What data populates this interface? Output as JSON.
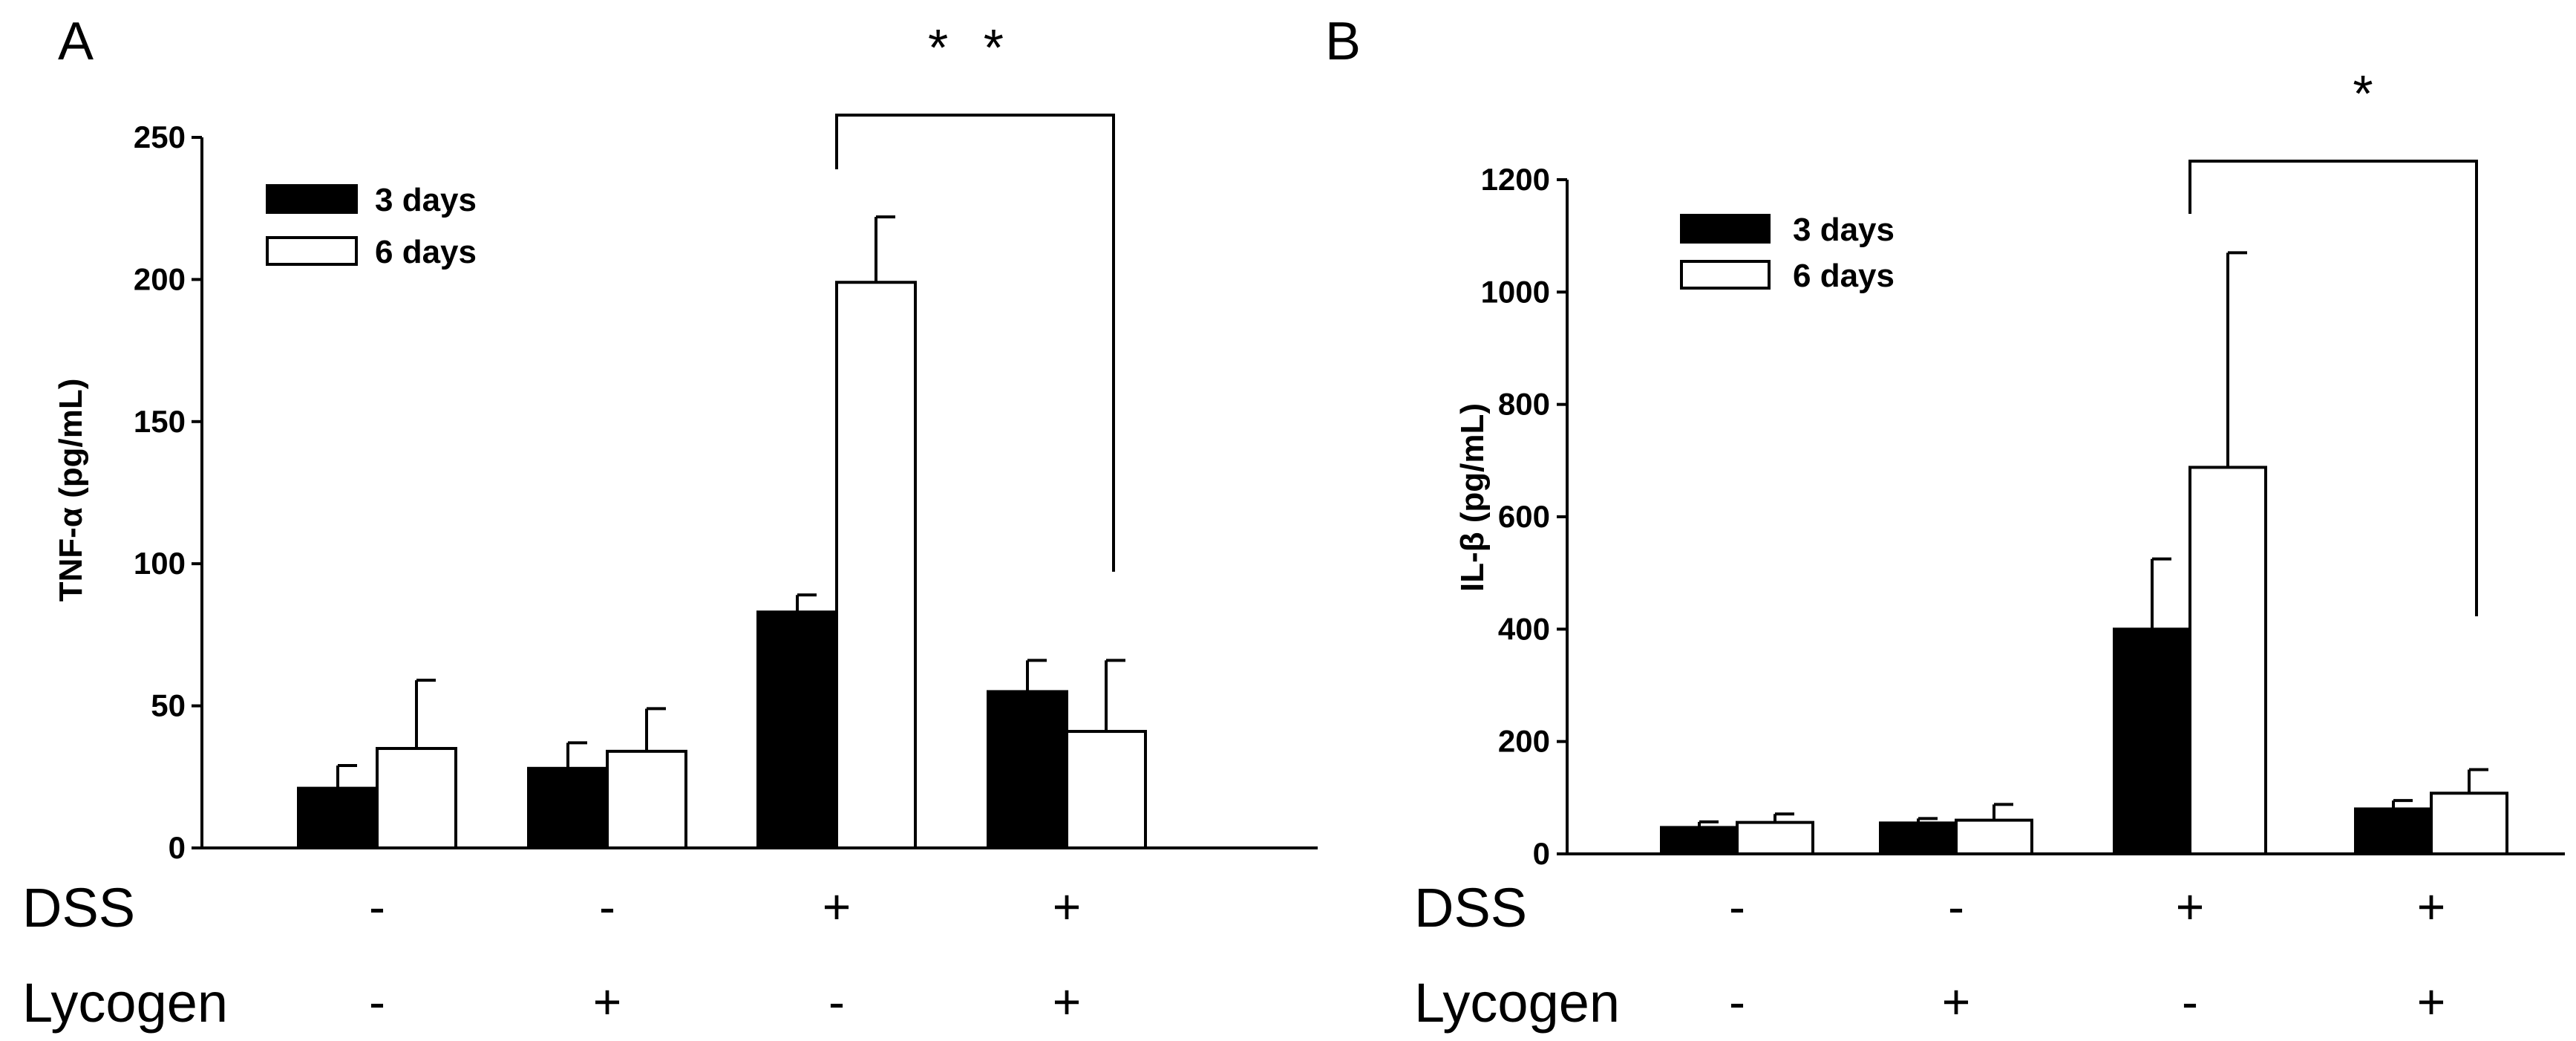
{
  "chart_data": [
    {
      "panel_label": "A",
      "type": "bar",
      "title": "",
      "ylabel": "TNF-α (pg/mL)",
      "xlabel": "",
      "ylim": [
        0,
        250
      ],
      "yticks": [
        0,
        50,
        100,
        150,
        200,
        250
      ],
      "ytick_labels": [
        "0",
        "50",
        "100",
        "150",
        "200",
        "250"
      ],
      "grid": false,
      "legend_position": "top-left",
      "series": [
        {
          "name": "3 days",
          "fill": "#000000",
          "values": [
            21,
            28,
            83,
            55
          ],
          "errors": [
            8,
            9,
            6,
            11
          ]
        },
        {
          "name": "6 days",
          "fill": "#ffffff",
          "values": [
            35,
            34,
            199,
            41
          ],
          "errors": [
            24,
            15,
            23,
            25
          ]
        }
      ],
      "conditions": [
        {
          "label": "DSS",
          "values": [
            "-",
            "-",
            "+",
            "+"
          ]
        },
        {
          "label": "Lycogen",
          "values": [
            "-",
            "+",
            "-",
            "+"
          ]
        }
      ],
      "significance": {
        "label": "* *",
        "from_group": 2,
        "to_group": 3
      }
    },
    {
      "panel_label": "B",
      "type": "bar",
      "title": "",
      "ylabel": "IL-β (pg/mL)",
      "xlabel": "",
      "ylim": [
        0,
        1200
      ],
      "yticks": [
        0,
        200,
        400,
        600,
        800,
        1000,
        1200
      ],
      "ytick_labels": [
        "0",
        "200",
        "400",
        "600",
        "800",
        "1000",
        "1200"
      ],
      "grid": false,
      "legend_position": "top-left",
      "series": [
        {
          "name": "3 days",
          "fill": "#000000",
          "values": [
            47,
            55,
            400,
            80
          ],
          "errors": [
            10,
            8,
            125,
            15
          ]
        },
        {
          "name": "6 days",
          "fill": "#ffffff",
          "values": [
            56,
            60,
            688,
            108
          ],
          "errors": [
            15,
            28,
            382,
            42
          ]
        }
      ],
      "conditions": [
        {
          "label": "DSS",
          "values": [
            "-",
            "-",
            "+",
            "+"
          ]
        },
        {
          "label": "Lycogen",
          "values": [
            "-",
            "+",
            "-",
            "+"
          ]
        }
      ],
      "significance": {
        "label": "*",
        "from_group": 2,
        "to_group": 3
      }
    }
  ]
}
